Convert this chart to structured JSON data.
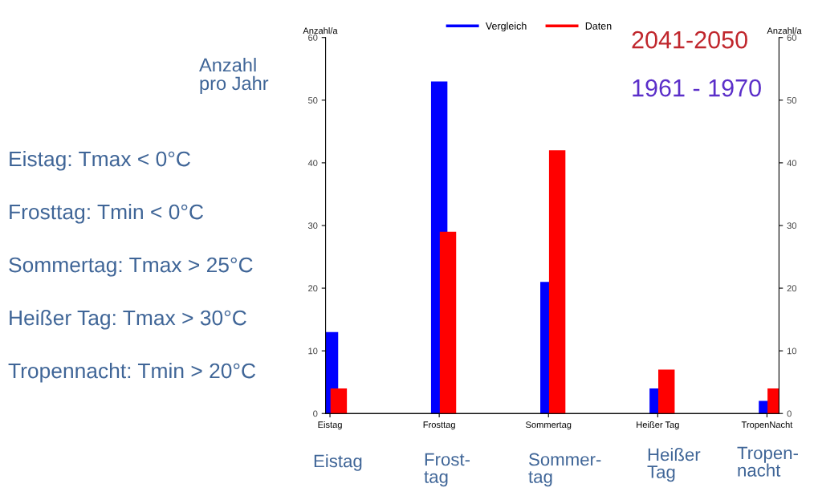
{
  "chart_data": {
    "type": "bar",
    "categories": [
      "Eistag",
      "Frosttag",
      "Sommertag",
      "Heißer Tag",
      "TropenNacht"
    ],
    "series": [
      {
        "name": "Vergleich",
        "color": "#0000ff",
        "values": [
          13,
          53,
          21,
          4,
          2
        ]
      },
      {
        "name": "Daten",
        "color": "#ff0000",
        "values": [
          4,
          29,
          42,
          7,
          4
        ]
      }
    ],
    "ylabel": "Anzahl/a",
    "y2label": "Anzahl/a",
    "ylim": [
      0,
      60
    ],
    "yticks": [
      0,
      10,
      20,
      30,
      40,
      50,
      60
    ],
    "y2lim": [
      0,
      60
    ],
    "y2ticks": [
      0,
      10,
      20,
      30,
      40,
      50,
      60
    ],
    "legend": "top",
    "grid": false,
    "annotations": [
      "Anzahl\npro Jahr",
      "Eistag: Tmax < 0°C",
      "Frosttag: Tmin < 0°C",
      "Sommertag: Tmax > 25°C",
      "Heißer Tag: Tmax > 30°C",
      "Tropennacht: Tmin > 20°C",
      "2041-2050",
      "1961 - 1970",
      "Eistag",
      "Frost-\ntag",
      "Sommer-\ntag",
      "Heißer\nTag",
      "Tropen-\nnacht"
    ]
  }
}
